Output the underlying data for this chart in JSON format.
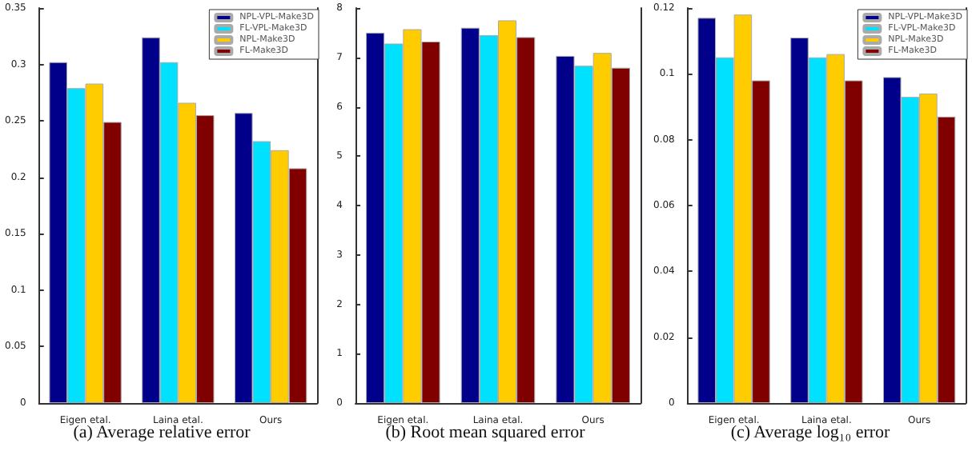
{
  "chart_data": [
    {
      "type": "bar",
      "title": "(a) Average relative error",
      "categories": [
        "Eigen etal.",
        "Laina etal.",
        "Ours"
      ],
      "series": [
        {
          "name": "NPL-VPL-Make3D",
          "color": "#00008b",
          "values": [
            0.302,
            0.324,
            0.257
          ]
        },
        {
          "name": "FL-VPL-Make3D",
          "color": "#00e0ff",
          "values": [
            0.279,
            0.302,
            0.232
          ]
        },
        {
          "name": "NPL-Make3D",
          "color": "#ffcc00",
          "values": [
            0.283,
            0.266,
            0.224
          ]
        },
        {
          "name": "FL-Make3D",
          "color": "#800000",
          "values": [
            0.249,
            0.255,
            0.208
          ]
        }
      ],
      "ylim": [
        0,
        0.35
      ],
      "yticks": [
        0,
        0.05,
        0.1,
        0.15,
        0.2,
        0.25,
        0.3,
        0.35
      ],
      "grid": false,
      "legend": "top right"
    },
    {
      "type": "bar",
      "title": "(b) Root mean squared error",
      "categories": [
        "Eigen etal.",
        "Laina etal.",
        "Ours"
      ],
      "series": [
        {
          "color": "#00008b",
          "values": [
            7.5,
            7.6,
            7.03
          ]
        },
        {
          "color": "#00e0ff",
          "values": [
            7.28,
            7.45,
            6.83
          ]
        },
        {
          "color": "#ffcc00",
          "values": [
            7.57,
            7.75,
            7.09
          ]
        },
        {
          "color": "#800000",
          "values": [
            7.32,
            7.41,
            6.79
          ]
        }
      ],
      "ylim": [
        0,
        8
      ],
      "yticks": [
        0,
        1,
        2,
        3,
        4,
        5,
        6,
        7,
        8
      ],
      "grid": false,
      "legend": false
    },
    {
      "type": "bar",
      "title": "(c) Average log₁₀ error",
      "categories": [
        "Eigen etal.",
        "Laina etal.",
        "Ours"
      ],
      "series": [
        {
          "name": "NPL-VPL-Make3D",
          "color": "#00008b",
          "values": [
            0.117,
            0.111,
            0.099
          ]
        },
        {
          "name": "FL-VPL-Make3D",
          "color": "#00e0ff",
          "values": [
            0.105,
            0.105,
            0.093
          ]
        },
        {
          "name": "NPL-Make3D",
          "color": "#ffcc00",
          "values": [
            0.118,
            0.106,
            0.094
          ]
        },
        {
          "name": "FL-Make3D",
          "color": "#800000",
          "values": [
            0.098,
            0.098,
            0.087
          ]
        }
      ],
      "ylim": [
        0,
        0.12
      ],
      "yticks": [
        0,
        0.02,
        0.04,
        0.06,
        0.08,
        0.1,
        0.12
      ],
      "grid": false,
      "legend": "top right"
    }
  ]
}
